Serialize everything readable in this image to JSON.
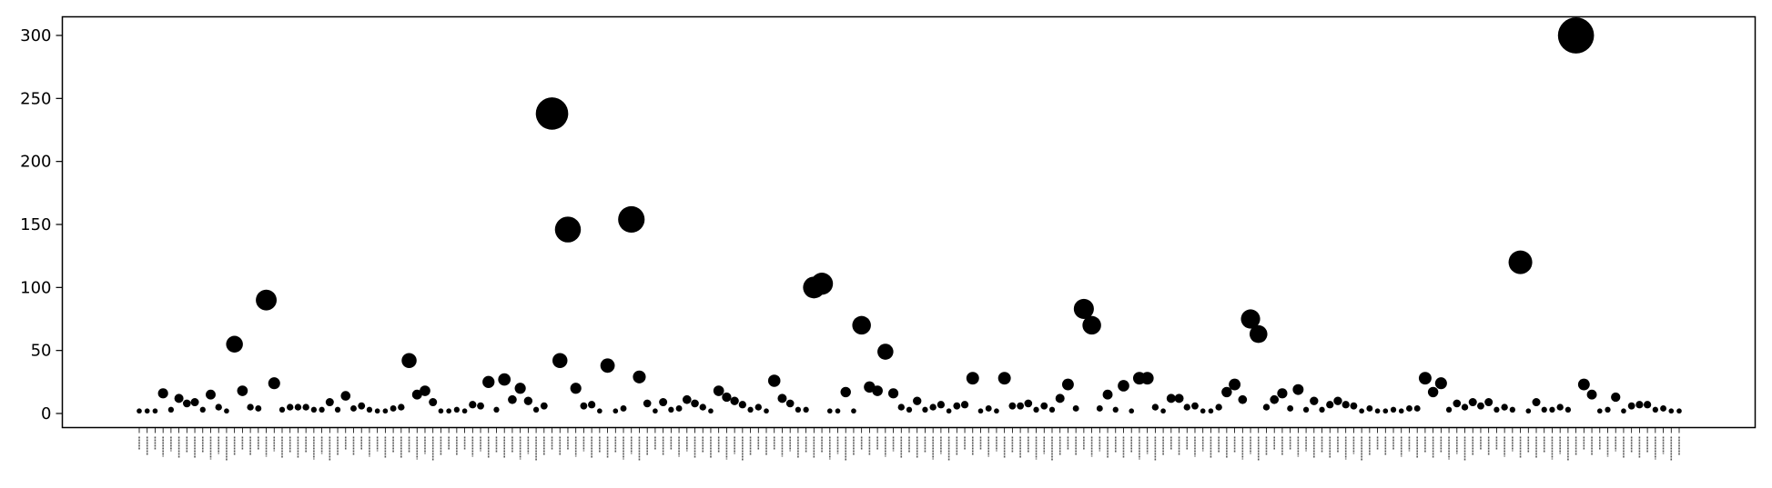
{
  "chart_data": {
    "type": "scatter",
    "title": "",
    "xlabel": "",
    "ylabel": "",
    "ylim": [
      -12,
      315
    ],
    "yticks": [
      0,
      50,
      100,
      150,
      200,
      250,
      300
    ],
    "grid": false,
    "legend": "none",
    "marker_color": "#000000",
    "x_tick_labels_legible": false,
    "y": [
      2,
      2,
      2,
      16,
      3,
      12,
      8,
      9,
      3,
      15,
      5,
      2,
      55,
      18,
      5,
      4,
      90,
      24,
      3,
      5,
      5,
      5,
      3,
      3,
      9,
      3,
      14,
      4,
      6,
      3,
      2,
      2,
      4,
      5,
      42,
      15,
      18,
      9,
      2,
      2,
      3,
      2,
      7,
      6,
      25,
      3,
      27,
      11,
      20,
      10,
      3,
      6,
      238,
      42,
      146,
      20,
      6,
      7,
      2,
      38,
      2,
      4,
      154,
      29,
      8,
      2,
      9,
      3,
      4,
      11,
      8,
      5,
      2,
      18,
      13,
      10,
      7,
      3,
      5,
      2,
      26,
      12,
      8,
      3,
      3,
      100,
      103,
      2,
      2,
      17,
      2,
      70,
      21,
      18,
      49,
      16,
      5,
      3,
      10,
      3,
      5,
      7,
      2,
      6,
      7,
      28,
      2,
      4,
      2,
      28,
      6,
      6,
      8,
      3,
      6,
      3,
      12,
      23,
      4,
      83,
      70,
      4,
      15,
      3,
      22,
      2,
      28,
      28,
      5,
      2,
      12,
      12,
      5,
      6,
      2,
      2,
      5,
      17,
      23,
      11,
      75,
      63,
      5,
      11,
      16,
      4,
      19,
      3,
      10,
      3,
      7,
      10,
      7,
      6,
      2,
      4,
      2,
      2,
      3,
      2,
      4,
      4,
      28,
      17,
      24,
      3,
      8,
      5,
      9,
      6,
      9,
      3,
      5,
      3,
      120,
      2,
      9,
      3,
      3,
      5,
      3,
      300,
      23,
      15,
      2,
      3,
      13,
      2,
      6,
      7,
      7,
      3,
      4,
      2,
      2
    ]
  }
}
